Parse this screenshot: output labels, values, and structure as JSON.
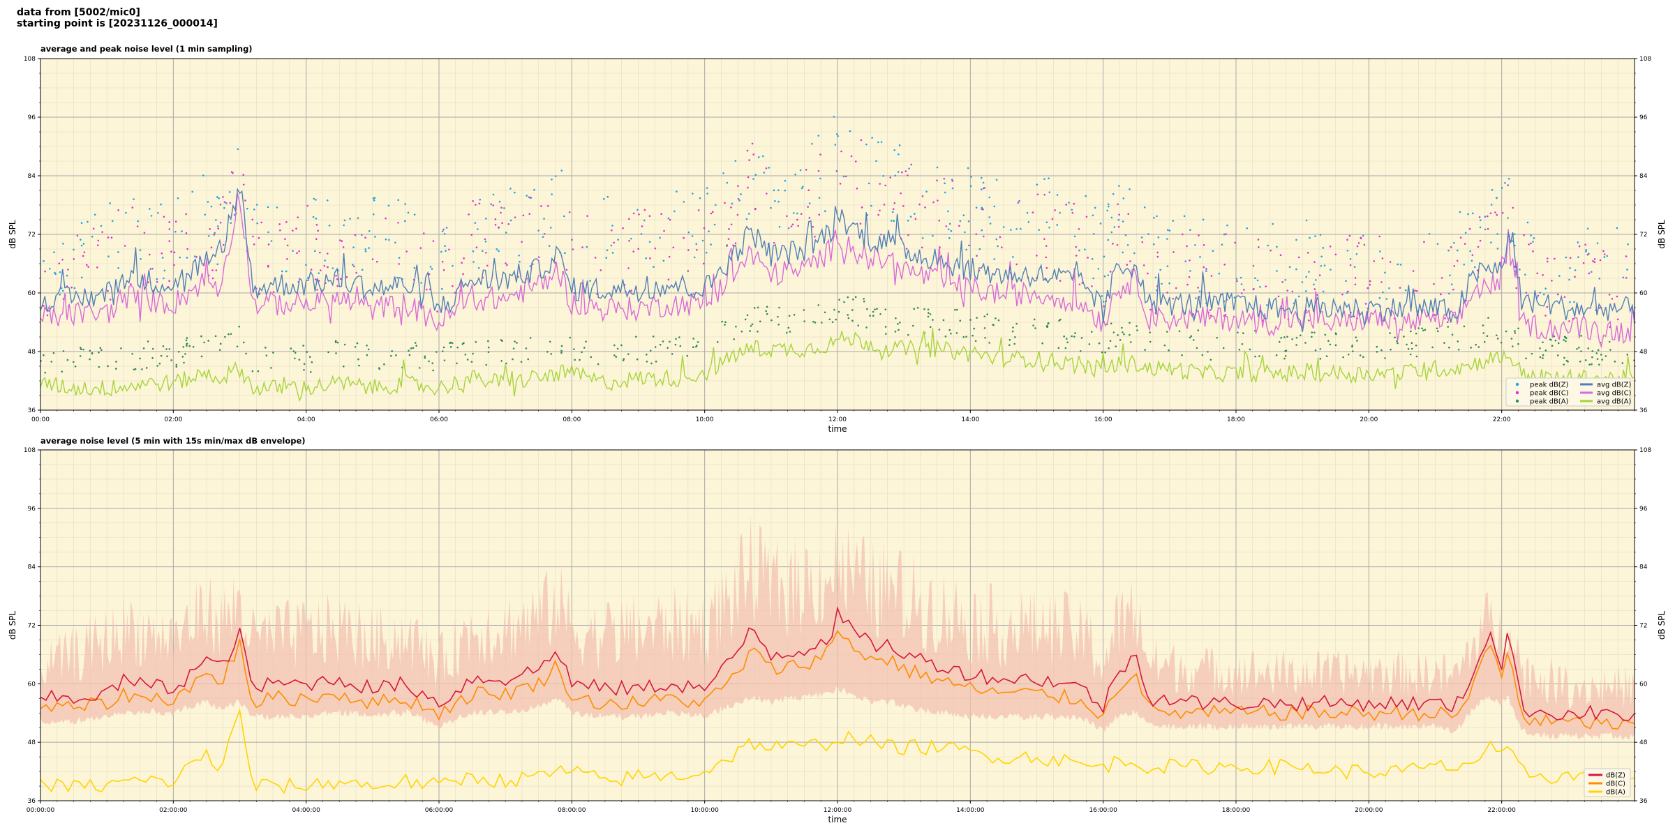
{
  "header": {
    "line1": "data from [5002/mic0]",
    "line2": "starting point is [20231126_000014]"
  },
  "colors": {
    "background": "#fdf5d8",
    "peak_z": "#1fa3e0",
    "peak_c": "#e02fd0",
    "peak_a": "#2e8b57",
    "avg_z": "#4f7fb5",
    "avg_c": "#d86ad9",
    "avg_a": "#a6d43a",
    "env": "#f2c2b2",
    "db_z": "#d7183a",
    "db_c": "#ff8c00",
    "db_a": "#ffd500"
  },
  "chart_data": [
    {
      "type": "line",
      "title": "average and peak noise level (1 min sampling)",
      "xlabel": "time",
      "ylabel": "dB SPL",
      "ylim": [
        36,
        108
      ],
      "yticks": [
        "36",
        "48",
        "60",
        "72",
        "84",
        "96",
        "108"
      ],
      "xlim_hours": [
        0,
        24
      ],
      "xticks": [
        "00:00",
        "02:00",
        "04:00",
        "06:00",
        "08:00",
        "10:00",
        "12:00",
        "14:00",
        "16:00",
        "18:00",
        "20:00",
        "22:00"
      ],
      "grid": true,
      "legend_position": "bottom-right",
      "legend": [
        "peak dB(Z)",
        "peak dB(C)",
        "peak dB(A)",
        "avg dB(Z)",
        "avg dB(C)",
        "avg dB(A)"
      ],
      "hours": [
        0,
        0.5,
        1,
        1.3,
        1.5,
        2,
        2.5,
        2.7,
        3,
        3.2,
        3.5,
        4,
        4.5,
        5,
        5.5,
        6,
        6.5,
        7,
        7.5,
        7.8,
        8,
        8.5,
        9,
        9.5,
        10,
        10.5,
        10.7,
        11,
        11.5,
        11.9,
        12,
        12.3,
        12.5,
        12.8,
        13,
        13.5,
        14,
        14.5,
        15,
        15.5,
        15.8,
        16,
        16.2,
        16.5,
        16.7,
        17,
        17.5,
        18,
        18.5,
        19,
        19.5,
        20,
        20.5,
        21,
        21.3,
        21.6,
        21.8,
        22,
        22.1,
        22.3,
        22.7,
        23,
        23.5,
        24
      ],
      "series": [
        {
          "name": "avg dB(Z)",
          "values": [
            58,
            58,
            59,
            63,
            62,
            61,
            66,
            64,
            82,
            60,
            61,
            61,
            62,
            60,
            61,
            56,
            62,
            62,
            64,
            67,
            60,
            60,
            60,
            61,
            60,
            68,
            72,
            67,
            68,
            72,
            75,
            72,
            70,
            70,
            68,
            66,
            64,
            63,
            63,
            62,
            60,
            55,
            64,
            65,
            57,
            57,
            57,
            57,
            56,
            56,
            56,
            56,
            56,
            56,
            55,
            63,
            64,
            64,
            72,
            58,
            57,
            56,
            56,
            56
          ]
        },
        {
          "name": "avg dB(C)",
          "values": [
            54,
            55,
            55,
            59,
            58,
            57,
            62,
            60,
            80,
            57,
            57,
            57,
            58,
            56,
            57,
            53,
            58,
            58,
            61,
            64,
            57,
            56,
            56,
            57,
            57,
            64,
            67,
            63,
            64,
            68,
            71,
            68,
            66,
            66,
            64,
            62,
            60,
            59,
            59,
            58,
            56,
            53,
            60,
            62,
            54,
            54,
            54,
            54,
            53,
            54,
            53,
            54,
            53,
            54,
            53,
            60,
            61,
            61,
            70,
            53,
            52,
            52,
            52,
            51
          ]
        },
        {
          "name": "avg dB(A)",
          "values": [
            41,
            40,
            40,
            40,
            41,
            41,
            43,
            42,
            44,
            40,
            40,
            40,
            41,
            40,
            41,
            40,
            42,
            41,
            42,
            43,
            43,
            41,
            42,
            42,
            43,
            47,
            48,
            48,
            48,
            49,
            50,
            50,
            49,
            48,
            48,
            48,
            47,
            46,
            46,
            45,
            44,
            44,
            45,
            45,
            44,
            44,
            43,
            43,
            43,
            43,
            43,
            43,
            43,
            44,
            44,
            45,
            46,
            46,
            47,
            43,
            42,
            42,
            42,
            42
          ]
        },
        {
          "name": "peak dB(Z)",
          "values": [
            66,
            67,
            68,
            72,
            71,
            70,
            75,
            73,
            85,
            70,
            71,
            71,
            72,
            70,
            71,
            66,
            72,
            72,
            74,
            77,
            71,
            70,
            71,
            72,
            72,
            80,
            84,
            80,
            81,
            85,
            88,
            85,
            83,
            83,
            80,
            78,
            76,
            74,
            74,
            73,
            71,
            66,
            75,
            76,
            67,
            66,
            66,
            66,
            65,
            65,
            65,
            65,
            65,
            65,
            65,
            72,
            73,
            72,
            78,
            66,
            65,
            64,
            64,
            64
          ]
        },
        {
          "name": "peak dB(C)",
          "values": [
            63,
            64,
            65,
            69,
            68,
            67,
            72,
            70,
            83,
            67,
            68,
            68,
            69,
            67,
            68,
            63,
            69,
            69,
            71,
            74,
            68,
            67,
            68,
            69,
            69,
            77,
            81,
            77,
            78,
            82,
            85,
            82,
            80,
            80,
            77,
            75,
            73,
            71,
            71,
            70,
            68,
            63,
            72,
            73,
            64,
            63,
            63,
            63,
            62,
            62,
            62,
            62,
            62,
            62,
            62,
            69,
            70,
            69,
            75,
            63,
            62,
            61,
            61,
            61
          ]
        },
        {
          "name": "peak dB(A)",
          "values": [
            46,
            46,
            46,
            47,
            47,
            47,
            49,
            48,
            50,
            46,
            46,
            46,
            47,
            46,
            47,
            46,
            48,
            47,
            48,
            49,
            49,
            47,
            48,
            48,
            49,
            53,
            54,
            54,
            54,
            55,
            56,
            56,
            55,
            54,
            54,
            54,
            53,
            52,
            52,
            51,
            50,
            50,
            51,
            51,
            50,
            50,
            49,
            49,
            49,
            49,
            49,
            49,
            49,
            50,
            50,
            51,
            52,
            52,
            53,
            49,
            48,
            48,
            48,
            48
          ]
        }
      ]
    },
    {
      "type": "line",
      "title": "average noise level (5 min with 15s min/max dB envelope)",
      "xlabel": "time",
      "ylabel": "dB SPL",
      "ylim": [
        36,
        108
      ],
      "yticks": [
        "36",
        "48",
        "60",
        "72",
        "84",
        "96",
        "108"
      ],
      "xlim_hours": [
        0,
        24
      ],
      "xticks": [
        "00:00:00",
        "02:00:00",
        "04:00:00",
        "06:00:00",
        "08:00:00",
        "10:00:00",
        "12:00:00",
        "14:00:00",
        "16:00:00",
        "18:00:00",
        "20:00:00",
        "22:00:00"
      ],
      "grid": true,
      "legend_position": "bottom-right",
      "legend": [
        "dB(Z)",
        "dB(C)",
        "dB(A)"
      ],
      "hours": [
        0,
        0.5,
        1,
        1.3,
        1.5,
        2,
        2.5,
        2.7,
        3,
        3.2,
        3.5,
        4,
        4.5,
        5,
        5.5,
        6,
        6.5,
        7,
        7.5,
        7.8,
        8,
        8.5,
        9,
        9.5,
        10,
        10.5,
        10.7,
        11,
        11.5,
        11.9,
        12,
        12.3,
        12.5,
        12.8,
        13,
        13.5,
        14,
        14.5,
        15,
        15.5,
        15.8,
        16,
        16.2,
        16.5,
        16.7,
        17,
        17.5,
        18,
        18.5,
        19,
        19.5,
        20,
        20.5,
        21,
        21.3,
        21.6,
        21.8,
        22,
        22.1,
        22.3,
        22.7,
        23,
        23.5,
        24
      ],
      "series": [
        {
          "name": "dB(Z)",
          "values": [
            57,
            57,
            58,
            61,
            60,
            59,
            65,
            63,
            70,
            59,
            60,
            60,
            61,
            59,
            60,
            56,
            61,
            61,
            63,
            67,
            60,
            59,
            59,
            60,
            59,
            66,
            72,
            66,
            67,
            70,
            74,
            70,
            68,
            68,
            66,
            64,
            62,
            61,
            61,
            60,
            58,
            55,
            62,
            66,
            57,
            57,
            56,
            56,
            56,
            56,
            56,
            56,
            56,
            56,
            55,
            63,
            71,
            64,
            71,
            55,
            54,
            54,
            54,
            53
          ]
        },
        {
          "name": "dB(C)",
          "values": [
            55,
            55,
            56,
            58,
            57,
            57,
            62,
            60,
            68,
            56,
            57,
            57,
            58,
            56,
            57,
            54,
            58,
            58,
            60,
            64,
            57,
            56,
            56,
            57,
            56,
            62,
            67,
            63,
            64,
            67,
            71,
            67,
            65,
            65,
            63,
            61,
            59,
            58,
            58,
            57,
            56,
            53,
            59,
            63,
            54,
            54,
            54,
            54,
            54,
            54,
            54,
            54,
            54,
            54,
            53,
            60,
            69,
            61,
            68,
            53,
            52,
            52,
            52,
            51
          ]
        },
        {
          "name": "dB(A)",
          "values": [
            39,
            39,
            39,
            40,
            40,
            40,
            46,
            42,
            54,
            39,
            39,
            39,
            40,
            39,
            40,
            39,
            41,
            40,
            41,
            42,
            42,
            40,
            41,
            41,
            42,
            46,
            48,
            47,
            47,
            48,
            49,
            49,
            48,
            47,
            47,
            47,
            46,
            45,
            45,
            44,
            43,
            43,
            44,
            44,
            43,
            43,
            43,
            43,
            43,
            43,
            42,
            42,
            42,
            43,
            43,
            44,
            47,
            45,
            46,
            42,
            41,
            41,
            41,
            41
          ]
        },
        {
          "name": "max",
          "values": [
            68,
            72,
            76,
            80,
            78,
            76,
            84,
            80,
            86,
            76,
            77,
            78,
            79,
            76,
            77,
            70,
            79,
            79,
            82,
            86,
            79,
            78,
            79,
            80,
            80,
            90,
            95,
            90,
            91,
            94,
            96,
            92,
            90,
            90,
            88,
            85,
            82,
            80,
            80,
            79,
            76,
            70,
            80,
            84,
            70,
            69,
            68,
            68,
            67,
            67,
            67,
            67,
            67,
            67,
            66,
            75,
            80,
            76,
            82,
            68,
            66,
            64,
            64,
            64
          ]
        },
        {
          "name": "min",
          "values": [
            53,
            53,
            54,
            55,
            55,
            55,
            57,
            56,
            57,
            54,
            54,
            54,
            55,
            54,
            55,
            52,
            55,
            55,
            56,
            58,
            55,
            54,
            54,
            55,
            54,
            57,
            58,
            57,
            58,
            59,
            60,
            58,
            57,
            57,
            56,
            55,
            54,
            54,
            54,
            54,
            53,
            51,
            54,
            55,
            52,
            52,
            52,
            52,
            52,
            52,
            52,
            52,
            52,
            52,
            51,
            56,
            58,
            57,
            58,
            51,
            50,
            50,
            50,
            50
          ]
        }
      ]
    }
  ]
}
